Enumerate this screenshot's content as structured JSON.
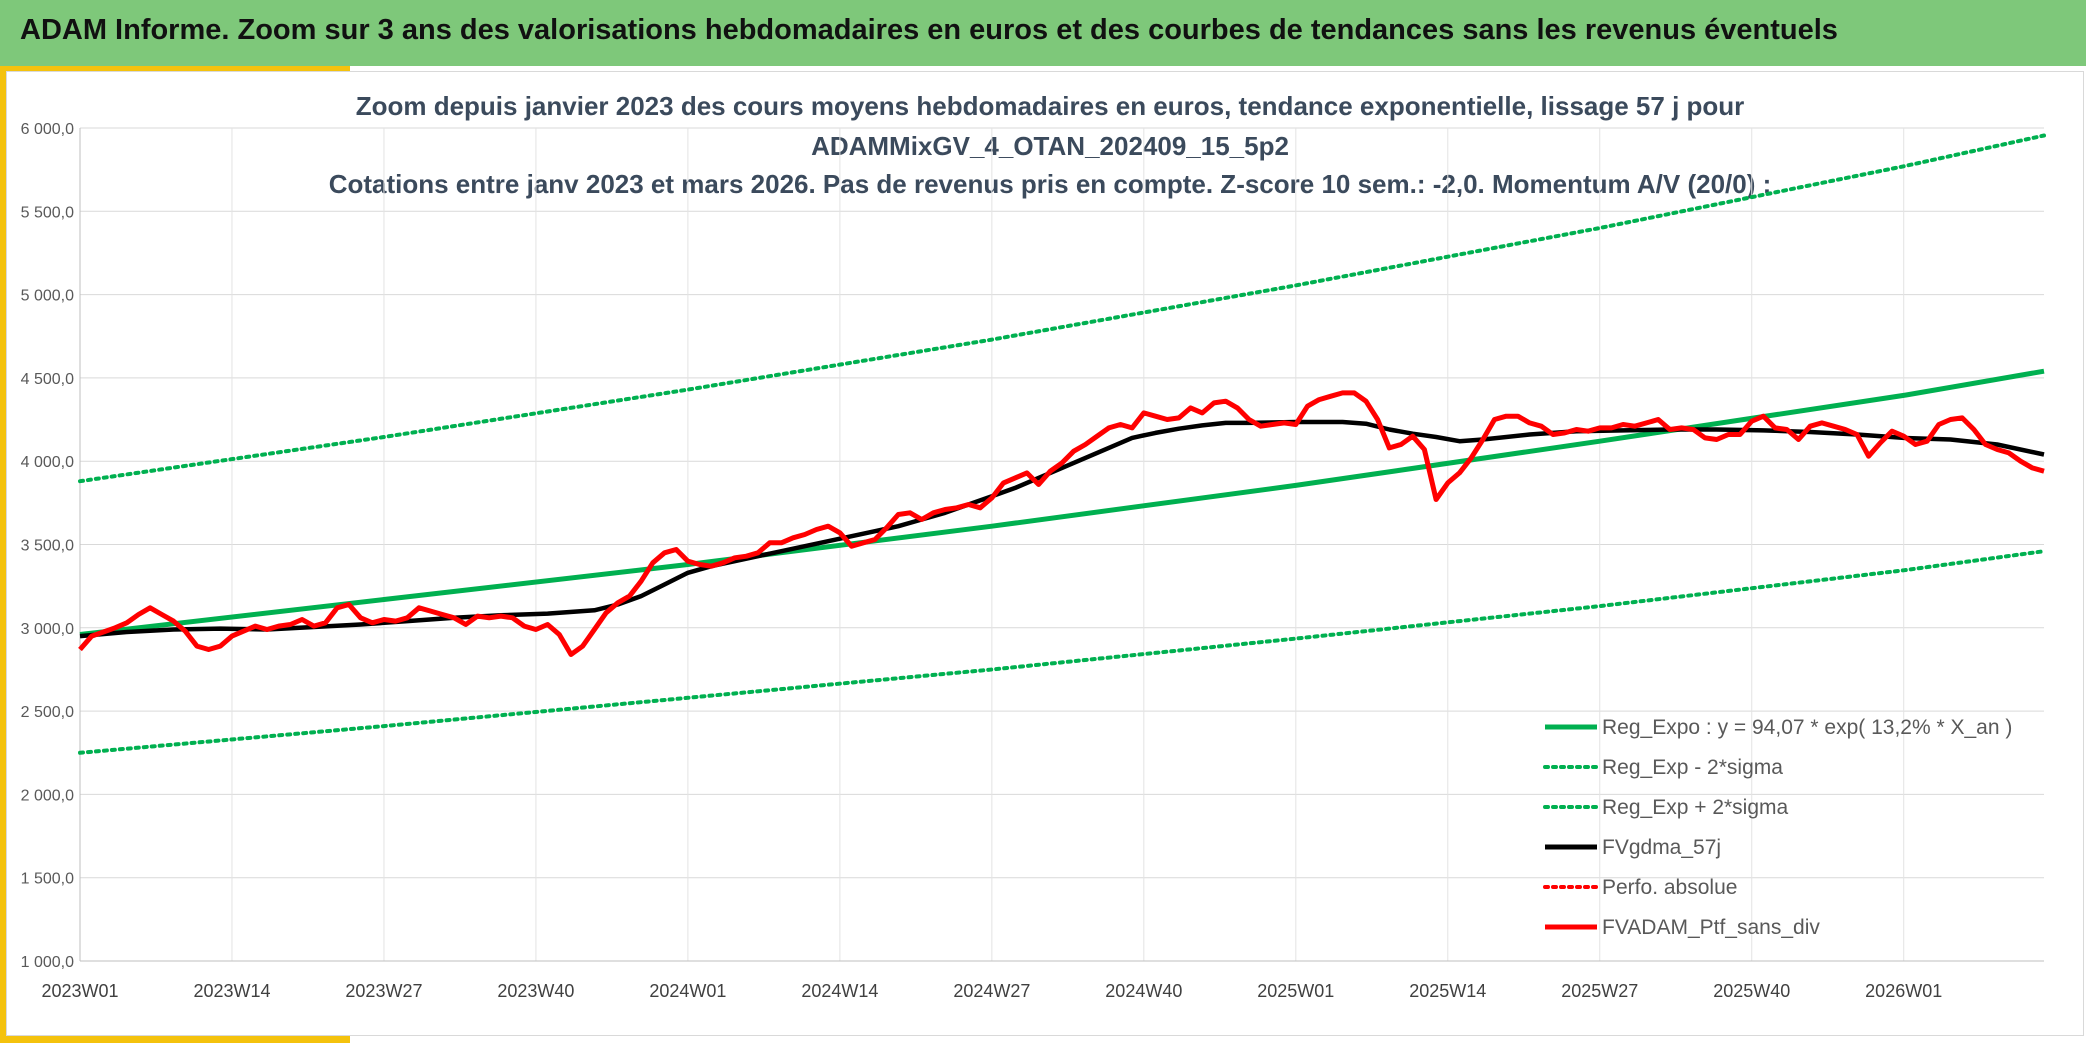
{
  "header": {
    "title": "ADAM Informe. Zoom sur 3 ans des valorisations hebdomadaires en euros et des courbes de tendances sans les revenus éventuels"
  },
  "chart_data": {
    "type": "line",
    "title_lines": [
      "Zoom depuis janvier 2023 des cours moyens hebdomadaires en euros, tendance exponentielle, lissage 57 j pour",
      "ADAMMixGV_4_OTAN_202409_15_5p2",
      "Cotations entre janv 2023 et mars 2026. Pas de revenus pris en compte. Z-score 10 sem.: -2,0. Momentum A/V (20/0) :"
    ],
    "xlabel": "",
    "ylabel": "",
    "ylim": [
      1000,
      6000
    ],
    "yticks": [
      1000,
      1500,
      2000,
      2500,
      3000,
      3500,
      4000,
      4500,
      5000,
      5500,
      6000
    ],
    "ytick_labels": [
      "1 000,0",
      "1 500,0",
      "2 000,0",
      "2 500,0",
      "3 000,0",
      "3 500,0",
      "4 000,0",
      "4 500,0",
      "5 000,0",
      "5 500,0",
      "6 000,0"
    ],
    "xlim": [
      0,
      168
    ],
    "xticks": [
      0,
      13,
      26,
      39,
      52,
      65,
      78,
      91,
      104,
      117,
      130,
      143,
      156
    ],
    "xtick_labels": [
      "2023W01",
      "2023W14",
      "2023W27",
      "2023W40",
      "2024W01",
      "2024W14",
      "2024W27",
      "2024W40",
      "2025W01",
      "2025W14",
      "2025W27",
      "2025W40",
      "2026W01"
    ],
    "grid": true,
    "legend_position": "bottom-right",
    "colors": {
      "green": "#00b050",
      "black": "#000000",
      "red": "#ff0000"
    },
    "series": [
      {
        "name": "Reg_Expo : y = 94,07 * exp( 13,2% *  X_an )",
        "style": "solid",
        "color": "#00b050",
        "points": [
          [
            0,
            2960
          ],
          [
            26,
            3170
          ],
          [
            52,
            3380
          ],
          [
            78,
            3610
          ],
          [
            104,
            3855
          ],
          [
            130,
            4120
          ],
          [
            156,
            4395
          ],
          [
            168,
            4540
          ]
        ]
      },
      {
        "name": "Reg_Exp - 2*sigma",
        "style": "dotted",
        "color": "#00b050",
        "points": [
          [
            0,
            2250
          ],
          [
            26,
            2410
          ],
          [
            52,
            2580
          ],
          [
            78,
            2750
          ],
          [
            104,
            2935
          ],
          [
            130,
            3130
          ],
          [
            156,
            3345
          ],
          [
            168,
            3460
          ]
        ]
      },
      {
        "name": "Reg_Exp + 2*sigma",
        "style": "dotted",
        "color": "#00b050",
        "points": [
          [
            0,
            3880
          ],
          [
            26,
            4145
          ],
          [
            52,
            4430
          ],
          [
            78,
            4730
          ],
          [
            104,
            5055
          ],
          [
            130,
            5400
          ],
          [
            156,
            5770
          ],
          [
            168,
            5955
          ]
        ]
      },
      {
        "name": "FVgdma_57j",
        "style": "solid",
        "color": "#000000",
        "points": [
          [
            0,
            2950
          ],
          [
            4,
            2975
          ],
          [
            8,
            2990
          ],
          [
            12,
            2995
          ],
          [
            16,
            2990
          ],
          [
            20,
            3005
          ],
          [
            24,
            3020
          ],
          [
            28,
            3040
          ],
          [
            32,
            3060
          ],
          [
            36,
            3075
          ],
          [
            40,
            3085
          ],
          [
            44,
            3105
          ],
          [
            46,
            3140
          ],
          [
            48,
            3190
          ],
          [
            50,
            3260
          ],
          [
            52,
            3330
          ],
          [
            54,
            3370
          ],
          [
            56,
            3400
          ],
          [
            58,
            3430
          ],
          [
            60,
            3460
          ],
          [
            62,
            3490
          ],
          [
            64,
            3520
          ],
          [
            66,
            3550
          ],
          [
            68,
            3580
          ],
          [
            70,
            3610
          ],
          [
            72,
            3650
          ],
          [
            74,
            3690
          ],
          [
            76,
            3740
          ],
          [
            78,
            3790
          ],
          [
            80,
            3840
          ],
          [
            82,
            3900
          ],
          [
            84,
            3960
          ],
          [
            86,
            4020
          ],
          [
            88,
            4080
          ],
          [
            90,
            4140
          ],
          [
            92,
            4170
          ],
          [
            94,
            4195
          ],
          [
            96,
            4215
          ],
          [
            98,
            4230
          ],
          [
            100,
            4230
          ],
          [
            104,
            4235
          ],
          [
            108,
            4235
          ],
          [
            110,
            4225
          ],
          [
            112,
            4190
          ],
          [
            114,
            4165
          ],
          [
            116,
            4145
          ],
          [
            118,
            4120
          ],
          [
            120,
            4130
          ],
          [
            124,
            4160
          ],
          [
            128,
            4180
          ],
          [
            132,
            4185
          ],
          [
            136,
            4190
          ],
          [
            140,
            4190
          ],
          [
            144,
            4185
          ],
          [
            148,
            4175
          ],
          [
            152,
            4160
          ],
          [
            156,
            4140
          ],
          [
            160,
            4130
          ],
          [
            164,
            4100
          ],
          [
            168,
            4040
          ]
        ]
      },
      {
        "name": "Perfo. absolue",
        "style": "dotted",
        "color": "#ff0000",
        "points": []
      },
      {
        "name": "FVADAM_Ptf_sans_div",
        "style": "solid",
        "color": "#ff0000",
        "points": [
          [
            0,
            2870
          ],
          [
            1,
            2950
          ],
          [
            2,
            2975
          ],
          [
            3,
            3000
          ],
          [
            4,
            3030
          ],
          [
            5,
            3080
          ],
          [
            6,
            3120
          ],
          [
            7,
            3080
          ],
          [
            8,
            3040
          ],
          [
            9,
            2980
          ],
          [
            10,
            2890
          ],
          [
            11,
            2870
          ],
          [
            12,
            2890
          ],
          [
            13,
            2950
          ],
          [
            14,
            2980
          ],
          [
            15,
            3010
          ],
          [
            16,
            2990
          ],
          [
            17,
            3010
          ],
          [
            18,
            3020
          ],
          [
            19,
            3050
          ],
          [
            20,
            3010
          ],
          [
            21,
            3030
          ],
          [
            22,
            3120
          ],
          [
            23,
            3140
          ],
          [
            24,
            3060
          ],
          [
            25,
            3030
          ],
          [
            26,
            3050
          ],
          [
            27,
            3040
          ],
          [
            28,
            3060
          ],
          [
            29,
            3120
          ],
          [
            30,
            3100
          ],
          [
            31,
            3080
          ],
          [
            32,
            3060
          ],
          [
            33,
            3020
          ],
          [
            34,
            3070
          ],
          [
            35,
            3060
          ],
          [
            36,
            3070
          ],
          [
            37,
            3060
          ],
          [
            38,
            3010
          ],
          [
            39,
            2990
          ],
          [
            40,
            3020
          ],
          [
            41,
            2960
          ],
          [
            42,
            2840
          ],
          [
            43,
            2890
          ],
          [
            44,
            2990
          ],
          [
            45,
            3090
          ],
          [
            46,
            3150
          ],
          [
            47,
            3190
          ],
          [
            48,
            3280
          ],
          [
            49,
            3390
          ],
          [
            50,
            3450
          ],
          [
            51,
            3470
          ],
          [
            52,
            3400
          ],
          [
            53,
            3380
          ],
          [
            54,
            3370
          ],
          [
            55,
            3390
          ],
          [
            56,
            3420
          ],
          [
            57,
            3430
          ],
          [
            58,
            3450
          ],
          [
            59,
            3510
          ],
          [
            60,
            3510
          ],
          [
            61,
            3540
          ],
          [
            62,
            3560
          ],
          [
            63,
            3590
          ],
          [
            64,
            3610
          ],
          [
            65,
            3570
          ],
          [
            66,
            3490
          ],
          [
            67,
            3510
          ],
          [
            68,
            3530
          ],
          [
            69,
            3600
          ],
          [
            70,
            3680
          ],
          [
            71,
            3690
          ],
          [
            72,
            3650
          ],
          [
            73,
            3690
          ],
          [
            74,
            3710
          ],
          [
            75,
            3720
          ],
          [
            76,
            3740
          ],
          [
            77,
            3720
          ],
          [
            78,
            3780
          ],
          [
            79,
            3870
          ],
          [
            80,
            3900
          ],
          [
            81,
            3930
          ],
          [
            82,
            3860
          ],
          [
            83,
            3940
          ],
          [
            84,
            3990
          ],
          [
            85,
            4060
          ],
          [
            86,
            4100
          ],
          [
            87,
            4150
          ],
          [
            88,
            4200
          ],
          [
            89,
            4220
          ],
          [
            90,
            4200
          ],
          [
            91,
            4290
          ],
          [
            92,
            4270
          ],
          [
            93,
            4250
          ],
          [
            94,
            4260
          ],
          [
            95,
            4320
          ],
          [
            96,
            4290
          ],
          [
            97,
            4350
          ],
          [
            98,
            4360
          ],
          [
            99,
            4320
          ],
          [
            100,
            4250
          ],
          [
            101,
            4210
          ],
          [
            102,
            4220
          ],
          [
            103,
            4230
          ],
          [
            104,
            4220
          ],
          [
            105,
            4330
          ],
          [
            106,
            4370
          ],
          [
            107,
            4390
          ],
          [
            108,
            4410
          ],
          [
            109,
            4410
          ],
          [
            110,
            4360
          ],
          [
            111,
            4250
          ],
          [
            112,
            4080
          ],
          [
            113,
            4100
          ],
          [
            114,
            4150
          ],
          [
            115,
            4070
          ],
          [
            116,
            3770
          ],
          [
            117,
            3870
          ],
          [
            118,
            3930
          ],
          [
            119,
            4020
          ],
          [
            120,
            4130
          ],
          [
            121,
            4250
          ],
          [
            122,
            4270
          ],
          [
            123,
            4270
          ],
          [
            124,
            4230
          ],
          [
            125,
            4210
          ],
          [
            126,
            4160
          ],
          [
            127,
            4170
          ],
          [
            128,
            4190
          ],
          [
            129,
            4180
          ],
          [
            130,
            4200
          ],
          [
            131,
            4200
          ],
          [
            132,
            4220
          ],
          [
            133,
            4210
          ],
          [
            134,
            4230
          ],
          [
            135,
            4250
          ],
          [
            136,
            4190
          ],
          [
            137,
            4200
          ],
          [
            138,
            4190
          ],
          [
            139,
            4140
          ],
          [
            140,
            4130
          ],
          [
            141,
            4160
          ],
          [
            142,
            4160
          ],
          [
            143,
            4240
          ],
          [
            144,
            4270
          ],
          [
            145,
            4200
          ],
          [
            146,
            4190
          ],
          [
            147,
            4130
          ],
          [
            148,
            4210
          ],
          [
            149,
            4230
          ],
          [
            150,
            4210
          ],
          [
            151,
            4190
          ],
          [
            152,
            4160
          ],
          [
            153,
            4030
          ],
          [
            154,
            4110
          ],
          [
            155,
            4180
          ],
          [
            156,
            4150
          ],
          [
            157,
            4100
          ],
          [
            158,
            4120
          ],
          [
            159,
            4220
          ],
          [
            160,
            4250
          ],
          [
            161,
            4260
          ],
          [
            162,
            4190
          ],
          [
            163,
            4100
          ],
          [
            164,
            4070
          ],
          [
            165,
            4050
          ],
          [
            166,
            4000
          ],
          [
            167,
            3960
          ],
          [
            168,
            3940
          ]
        ]
      }
    ]
  }
}
